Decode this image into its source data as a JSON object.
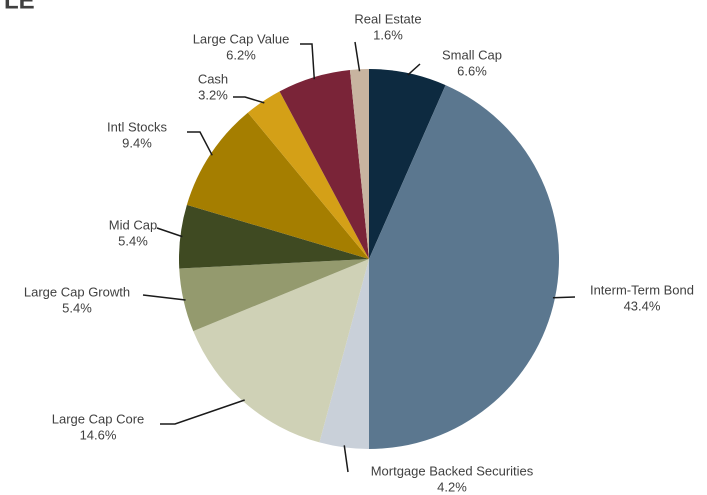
{
  "chart_data": {
    "type": "pie",
    "title": "LE",
    "categories": [
      "Small Cap",
      "Interm-Term Bond",
      "Mortgage Backed Securities",
      "Large Cap Core",
      "Large Cap Growth",
      "Mid Cap",
      "Intl Stocks",
      "Cash",
      "Large Cap Value",
      "Real Estate"
    ],
    "values": [
      6.6,
      43.4,
      4.2,
      14.6,
      5.4,
      5.4,
      9.4,
      3.2,
      6.2,
      1.6
    ],
    "value_labels": [
      "6.6%",
      "43.4%",
      "4.2%",
      "14.6%",
      "5.4%",
      "5.4%",
      "9.4%",
      "3.2%",
      "6.2%",
      "1.6%"
    ],
    "colors": [
      "#0d2a40",
      "#5b778f",
      "#c9d0d9",
      "#cfd1b6",
      "#949a6e",
      "#3f4a22",
      "#a57e00",
      "#d4a017",
      "#7a2438",
      "#c8b4a0"
    ]
  }
}
